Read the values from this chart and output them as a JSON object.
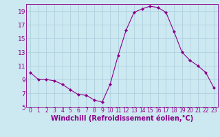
{
  "x": [
    0,
    1,
    2,
    3,
    4,
    5,
    6,
    7,
    8,
    9,
    10,
    11,
    12,
    13,
    14,
    15,
    16,
    17,
    18,
    19,
    20,
    21,
    22,
    23
  ],
  "y": [
    10.0,
    9.0,
    9.0,
    8.8,
    8.3,
    7.5,
    6.8,
    6.7,
    6.0,
    5.7,
    8.3,
    12.5,
    16.2,
    18.8,
    19.3,
    19.7,
    19.5,
    18.8,
    16.0,
    13.0,
    11.8,
    11.0,
    10.0,
    7.8
  ],
  "line_color": "#880088",
  "marker": "D",
  "marker_size": 2.0,
  "xlabel": "Windchill (Refroidissement éolien,°C)",
  "xlabel_fontsize": 7,
  "bg_color": "#cce8f0",
  "grid_color": "#aaccdd",
  "tick_color": "#880088",
  "label_color": "#880088",
  "ylim": [
    5,
    20
  ],
  "xlim": [
    -0.5,
    23.5
  ],
  "yticks": [
    5,
    7,
    9,
    11,
    13,
    15,
    17,
    19
  ],
  "xticks": [
    0,
    1,
    2,
    3,
    4,
    5,
    6,
    7,
    8,
    9,
    10,
    11,
    12,
    13,
    14,
    15,
    16,
    17,
    18,
    19,
    20,
    21,
    22,
    23
  ],
  "tick_fontsize": 5.5,
  "ytick_fontsize": 6.5
}
